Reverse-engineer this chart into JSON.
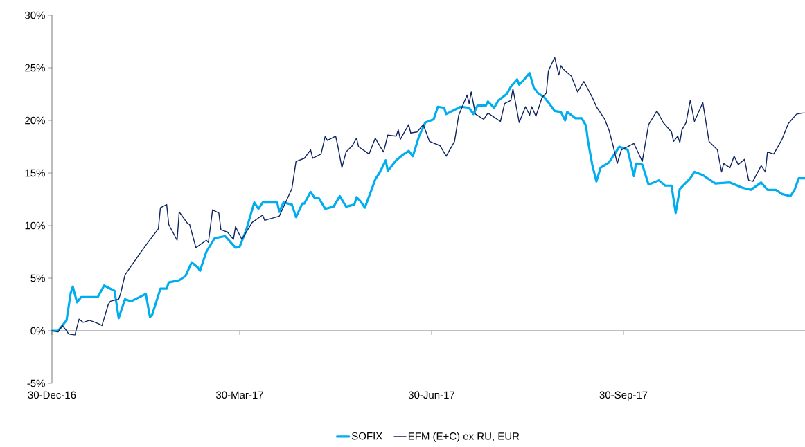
{
  "chart_data": {
    "type": "line",
    "xlim": [
      "2016-12-30",
      "2017-12-26"
    ],
    "ylim": [
      -5,
      30
    ],
    "xticks": [
      {
        "value": "2016-12-30",
        "label": "30-Dec-16"
      },
      {
        "value": "2017-03-30",
        "label": "30-Mar-17"
      },
      {
        "value": "2017-06-30",
        "label": "30-Jun-17"
      },
      {
        "value": "2017-09-30",
        "label": "30-Sep-17"
      }
    ],
    "yticks": [
      {
        "value": -5,
        "label": "-5%"
      },
      {
        "value": 0,
        "label": "0%"
      },
      {
        "value": 5,
        "label": "5%"
      },
      {
        "value": 10,
        "label": "10%"
      },
      {
        "value": 15,
        "label": "15%"
      },
      {
        "value": 20,
        "label": "20%"
      },
      {
        "value": 25,
        "label": "25%"
      },
      {
        "value": 30,
        "label": "30%"
      }
    ],
    "legend": "bottom",
    "marker": "none",
    "line_style": "solid",
    "series": [
      {
        "name": "SOFIX",
        "color": "#00aeef",
        "x": [
          "2016-12-30",
          "2017-01-02",
          "2017-01-06",
          "2017-01-08",
          "2017-01-09",
          "2017-01-11",
          "2017-01-13",
          "2017-01-21",
          "2017-01-24",
          "2017-01-27",
          "2017-01-29",
          "2017-01-31",
          "2017-02-03",
          "2017-02-06",
          "2017-02-10",
          "2017-02-13",
          "2017-02-15",
          "2017-02-16",
          "2017-02-20",
          "2017-02-23",
          "2017-02-24",
          "2017-03-01",
          "2017-03-04",
          "2017-03-07",
          "2017-03-10",
          "2017-03-11",
          "2017-03-14",
          "2017-03-18",
          "2017-03-23",
          "2017-03-28",
          "2017-03-30",
          "2017-04-02",
          "2017-04-06",
          "2017-04-08",
          "2017-04-10",
          "2017-04-17",
          "2017-04-18",
          "2017-04-20",
          "2017-04-24",
          "2017-04-26",
          "2017-04-29",
          "2017-04-30",
          "2017-05-03",
          "2017-05-05",
          "2017-05-07",
          "2017-05-10",
          "2017-05-14",
          "2017-05-17",
          "2017-05-20",
          "2017-05-24",
          "2017-05-25",
          "2017-05-27",
          "2017-05-29",
          "2017-06-01",
          "2017-06-03",
          "2017-06-05",
          "2017-06-08",
          "2017-06-09",
          "2017-06-13",
          "2017-06-16",
          "2017-06-19",
          "2017-06-21",
          "2017-06-24",
          "2017-06-27",
          "2017-07-01",
          "2017-07-03",
          "2017-07-06",
          "2017-07-07",
          "2017-07-11",
          "2017-07-14",
          "2017-07-18",
          "2017-07-20",
          "2017-07-22",
          "2017-07-26",
          "2017-07-27",
          "2017-07-30",
          "2017-08-01",
          "2017-08-05",
          "2017-08-07",
          "2017-08-10",
          "2017-08-11",
          "2017-08-13",
          "2017-08-16",
          "2017-08-18",
          "2017-08-20",
          "2017-08-23",
          "2017-08-25",
          "2017-08-28",
          "2017-08-31",
          "2017-09-02",
          "2017-09-03",
          "2017-09-07",
          "2017-09-10",
          "2017-09-12",
          "2017-09-13",
          "2017-09-15",
          "2017-09-17",
          "2017-09-19",
          "2017-09-23",
          "2017-09-28",
          "2017-10-02",
          "2017-10-05",
          "2017-10-06",
          "2017-10-09",
          "2017-10-12",
          "2017-10-17",
          "2017-10-20",
          "2017-10-23",
          "2017-10-25",
          "2017-10-27",
          "2017-11-01",
          "2017-11-03",
          "2017-11-07",
          "2017-11-13",
          "2017-11-20",
          "2017-11-26",
          "2017-11-30",
          "2017-12-05",
          "2017-12-08",
          "2017-12-12",
          "2017-12-15",
          "2017-12-19",
          "2017-12-21",
          "2017-12-23",
          "2017-12-26"
        ],
        "values": [
          0,
          0,
          1.0,
          3.6,
          4.2,
          2.7,
          3.2,
          3.2,
          4.3,
          4.0,
          3.8,
          1.2,
          3.0,
          2.8,
          3.2,
          3.5,
          1.3,
          1.5,
          4.0,
          4.0,
          4.6,
          4.8,
          5.2,
          6.5,
          6.0,
          5.7,
          7.5,
          8.8,
          9.0,
          7.9,
          8.0,
          9.5,
          12.2,
          11.6,
          12.2,
          12.2,
          11.3,
          12.2,
          12.0,
          10.8,
          12.1,
          12.1,
          13.2,
          12.6,
          12.6,
          11.6,
          11.8,
          12.8,
          11.8,
          12.0,
          12.7,
          12.3,
          11.7,
          13.3,
          14.4,
          15.0,
          16.2,
          15.2,
          16.2,
          16.7,
          17.1,
          16.6,
          18.5,
          19.8,
          20.1,
          21.3,
          21.2,
          20.6,
          21.0,
          21.3,
          21.2,
          20.6,
          21.4,
          21.4,
          21.8,
          21.2,
          21.9,
          22.5,
          23.2,
          23.9,
          23.4,
          23.8,
          24.5,
          23.1,
          22.6,
          22.2,
          21.7,
          20.9,
          20.8,
          20.0,
          20.8,
          20.2,
          20.2,
          19.5,
          18.0,
          15.8,
          14.2,
          15.5,
          16.0,
          17.5,
          17.2,
          14.7,
          15.9,
          15.8,
          13.9,
          14.3,
          13.8,
          13.8,
          11.2,
          13.5,
          14.5,
          15.1,
          14.8,
          14.0,
          14.1,
          13.6,
          13.4,
          14.1,
          13.4,
          13.4,
          13.0,
          12.8,
          13.4,
          14.5,
          14.5
        ]
      },
      {
        "name": "EFM (E+C) ex RU, EUR",
        "color": "#0f2460",
        "x": [
          "2016-12-30",
          "2017-01-02",
          "2017-01-04",
          "2017-01-06",
          "2017-01-07",
          "2017-01-10",
          "2017-01-12",
          "2017-01-14",
          "2017-01-17",
          "2017-01-21",
          "2017-01-23",
          "2017-01-26",
          "2017-01-27",
          "2017-01-31",
          "2017-02-01",
          "2017-02-03",
          "2017-02-10",
          "2017-02-14",
          "2017-02-19",
          "2017-02-20",
          "2017-02-23",
          "2017-02-24",
          "2017-02-28",
          "2017-03-01",
          "2017-03-05",
          "2017-03-06",
          "2017-03-09",
          "2017-03-14",
          "2017-03-15",
          "2017-03-17",
          "2017-03-20",
          "2017-03-21",
          "2017-03-24",
          "2017-03-27",
          "2017-03-28",
          "2017-03-31",
          "2017-04-05",
          "2017-04-10",
          "2017-04-11",
          "2017-04-18",
          "2017-04-24",
          "2017-04-26",
          "2017-04-30",
          "2017-05-03",
          "2017-05-04",
          "2017-05-08",
          "2017-05-10",
          "2017-05-11",
          "2017-05-15",
          "2017-05-16",
          "2017-05-18",
          "2017-05-20",
          "2017-05-23",
          "2017-05-25",
          "2017-05-26",
          "2017-05-31",
          "2017-06-03",
          "2017-06-06",
          "2017-06-07",
          "2017-06-09",
          "2017-06-13",
          "2017-06-14",
          "2017-06-15",
          "2017-06-19",
          "2017-06-20",
          "2017-06-23",
          "2017-06-26",
          "2017-06-29",
          "2017-07-04",
          "2017-07-07",
          "2017-07-11",
          "2017-07-13",
          "2017-07-17",
          "2017-07-18",
          "2017-07-19",
          "2017-07-21",
          "2017-07-25",
          "2017-07-27",
          "2017-08-02",
          "2017-08-04",
          "2017-08-07",
          "2017-08-08",
          "2017-08-11",
          "2017-08-14",
          "2017-08-16",
          "2017-08-17",
          "2017-08-19",
          "2017-08-22",
          "2017-08-24",
          "2017-08-25",
          "2017-08-28",
          "2017-08-30",
          "2017-08-31",
          "2017-09-01",
          "2017-09-05",
          "2017-09-08",
          "2017-09-11",
          "2017-09-15",
          "2017-09-17",
          "2017-09-21",
          "2017-09-23",
          "2017-09-25",
          "2017-09-27",
          "2017-09-29",
          "2017-10-03",
          "2017-10-05",
          "2017-10-09",
          "2017-10-12",
          "2017-10-16",
          "2017-10-19",
          "2017-10-23",
          "2017-10-24",
          "2017-10-26",
          "2017-10-27",
          "2017-10-28",
          "2017-10-30",
          "2017-11-01",
          "2017-11-03",
          "2017-11-07",
          "2017-11-10",
          "2017-11-14",
          "2017-11-16",
          "2017-11-17",
          "2017-11-20",
          "2017-11-22",
          "2017-11-24",
          "2017-11-27",
          "2017-11-29",
          "2017-12-01",
          "2017-12-05",
          "2017-12-07",
          "2017-12-08",
          "2017-12-11",
          "2017-12-15",
          "2017-12-18",
          "2017-12-22",
          "2017-12-25",
          "2017-12-26"
        ],
        "values": [
          0,
          -0.1,
          0.5,
          0,
          -0.3,
          -0.4,
          1.1,
          0.8,
          1.0,
          0.7,
          0.5,
          2.5,
          2.8,
          3.0,
          3.6,
          5.3,
          7.3,
          8.4,
          9.7,
          11.7,
          12.0,
          10.1,
          8.6,
          11.3,
          10.2,
          10.1,
          7.9,
          8.6,
          8.4,
          11.5,
          11.2,
          9.6,
          9.4,
          8.7,
          9.9,
          8.7,
          10.3,
          11.0,
          10.5,
          10.9,
          13.5,
          16.1,
          16.4,
          17.2,
          16.4,
          16.8,
          18.5,
          18.1,
          18.5,
          17.6,
          15.5,
          17.0,
          17.6,
          18.3,
          17.5,
          16.8,
          18.3,
          17.3,
          17.0,
          18.6,
          18.5,
          19.1,
          18.2,
          19.6,
          18.8,
          18.9,
          19.6,
          18.0,
          17.6,
          16.6,
          18.0,
          20.5,
          22.4,
          21.6,
          22.7,
          20.6,
          20.1,
          20.7,
          19.9,
          21.6,
          21.9,
          23.0,
          19.8,
          21.3,
          20.5,
          21.3,
          20.4,
          22.2,
          22.6,
          24.7,
          26.0,
          24.3,
          25.2,
          24.9,
          24.2,
          22.7,
          23.7,
          22.2,
          21.3,
          20.1,
          19.1,
          17.6,
          15.9,
          17.2,
          17.6,
          17.8,
          16.1,
          19.6,
          20.9,
          19.8,
          18.9,
          18.0,
          18.5,
          17.9,
          19.1,
          19.8,
          21.9,
          19.9,
          21.7,
          18.0,
          17.2,
          15.1,
          15.9,
          15.5,
          16.6,
          15.8,
          16.3,
          14.3,
          14.2,
          15.7,
          15.1,
          17.0,
          16.8,
          18.2,
          19.7,
          20.6,
          20.7,
          20.7
        ]
      }
    ]
  }
}
